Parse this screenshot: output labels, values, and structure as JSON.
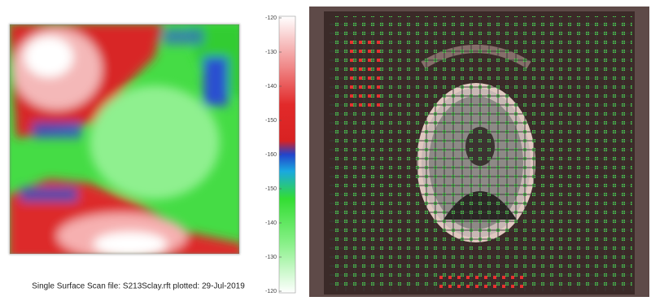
{
  "caption": "Single Surface Scan file: S213Sclay.rft   plotted: 29-Jul-2019",
  "colorbar": {
    "labels": [
      "-120",
      "-130",
      "-140",
      "-150",
      "-160",
      "-150",
      "-140",
      "-130",
      "-120"
    ]
  }
}
